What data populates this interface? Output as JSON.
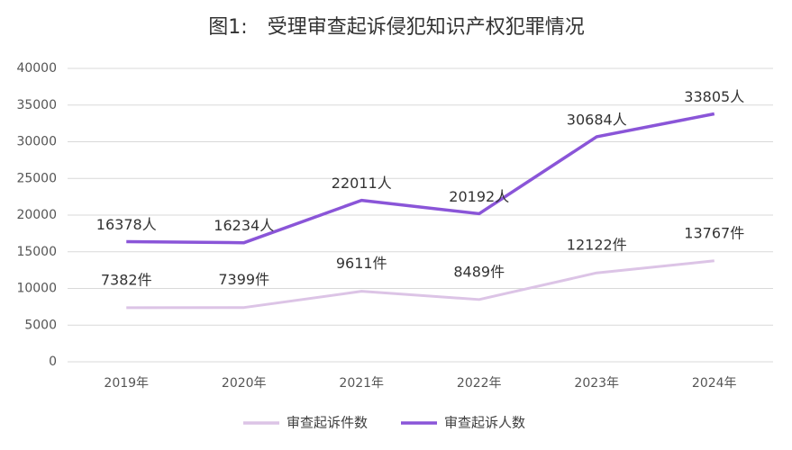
{
  "chart_data": {
    "type": "line",
    "title": "图1:　受理审查起诉侵犯知识产权犯罪情况",
    "categories": [
      "2019年",
      "2020年",
      "2021年",
      "2022年",
      "2023年",
      "2024年"
    ],
    "series": [
      {
        "name": "审查起诉件数",
        "color": "#dcc4e6",
        "values": [
          7382,
          7399,
          9611,
          8489,
          12122,
          13767
        ],
        "value_labels": [
          "7382件",
          "7399件",
          "9611件",
          "8489件",
          "12122件",
          "13767件"
        ]
      },
      {
        "name": "审查起诉人数",
        "color": "#8a55d8",
        "values": [
          16378,
          16234,
          22011,
          20192,
          30684,
          33805
        ],
        "value_labels": [
          "16378人",
          "16234人",
          "22011人",
          "20192人",
          "30684人",
          "33805人"
        ]
      }
    ],
    "ylim": [
      0,
      40000
    ],
    "yticks": [
      0,
      5000,
      10000,
      15000,
      20000,
      25000,
      30000,
      35000,
      40000
    ],
    "grid": true,
    "legend": "bottom"
  }
}
